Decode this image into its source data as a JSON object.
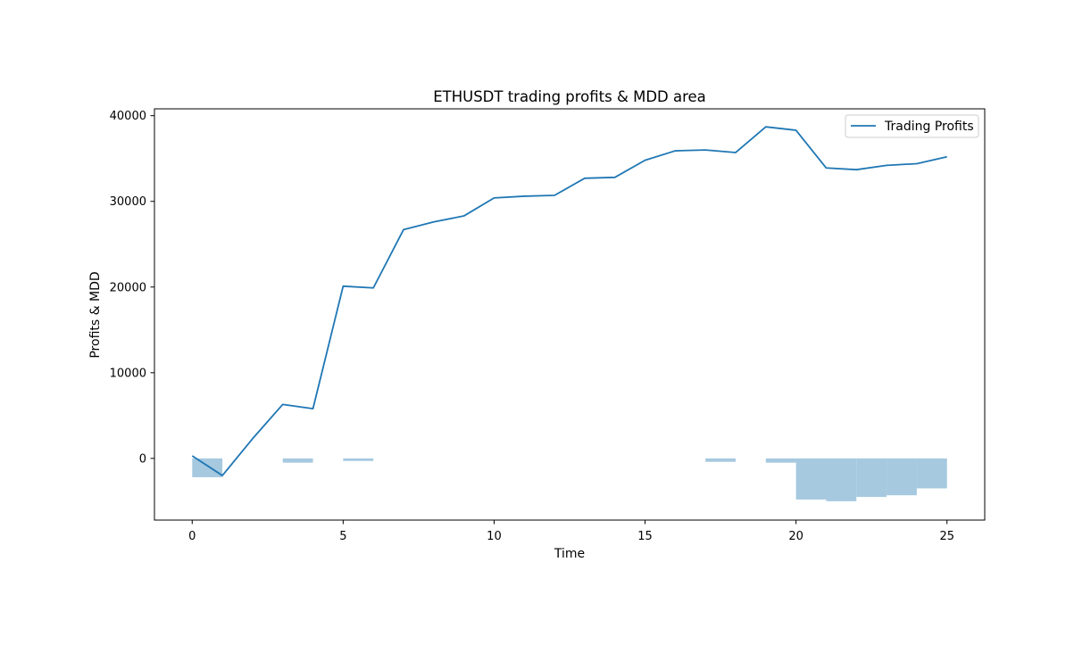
{
  "chart_data": {
    "type": "line",
    "title": "ETHUSDT trading profits & MDD area",
    "xlabel": "Time",
    "ylabel": "Profits & MDD",
    "xlim": [
      -1.25,
      26.25
    ],
    "ylim": [
      -7200,
      40800
    ],
    "xticks": [
      0,
      5,
      10,
      15,
      20,
      25
    ],
    "yticks": [
      0,
      10000,
      20000,
      30000,
      40000
    ],
    "grid": false,
    "legend": {
      "position": "top-right",
      "entries": [
        "Trading Profits"
      ]
    },
    "series": [
      {
        "name": "Trading Profits",
        "color": "#1f77b4",
        "x": [
          0,
          1,
          2,
          3,
          4,
          5,
          6,
          7,
          8,
          9,
          10,
          11,
          12,
          13,
          14,
          15,
          16,
          17,
          18,
          19,
          20,
          21,
          22,
          23,
          24,
          25
        ],
        "values": [
          300,
          -2000,
          2300,
          6300,
          5800,
          20100,
          19900,
          26700,
          27600,
          28300,
          30400,
          30600,
          30700,
          32700,
          32800,
          34800,
          35900,
          36000,
          35700,
          38700,
          38300,
          33900,
          33700,
          34200,
          34400,
          35200
        ]
      }
    ],
    "mdd_area": {
      "name": "MDD",
      "color": "#a6c9e0",
      "segments": [
        {
          "x0": 0,
          "x1": 1,
          "value": -2200
        },
        {
          "x0": 3,
          "x1": 4,
          "value": -500
        },
        {
          "x0": 5,
          "x1": 6,
          "value": -300
        },
        {
          "x0": 17,
          "x1": 18,
          "value": -400
        },
        {
          "x0": 19,
          "x1": 20,
          "value": -500
        },
        {
          "x0": 20,
          "x1": 21,
          "value": -4800
        },
        {
          "x0": 21,
          "x1": 22,
          "value": -5000
        },
        {
          "x0": 22,
          "x1": 23,
          "value": -4500
        },
        {
          "x0": 23,
          "x1": 24,
          "value": -4300
        },
        {
          "x0": 24,
          "x1": 25,
          "value": -3500
        }
      ]
    }
  }
}
